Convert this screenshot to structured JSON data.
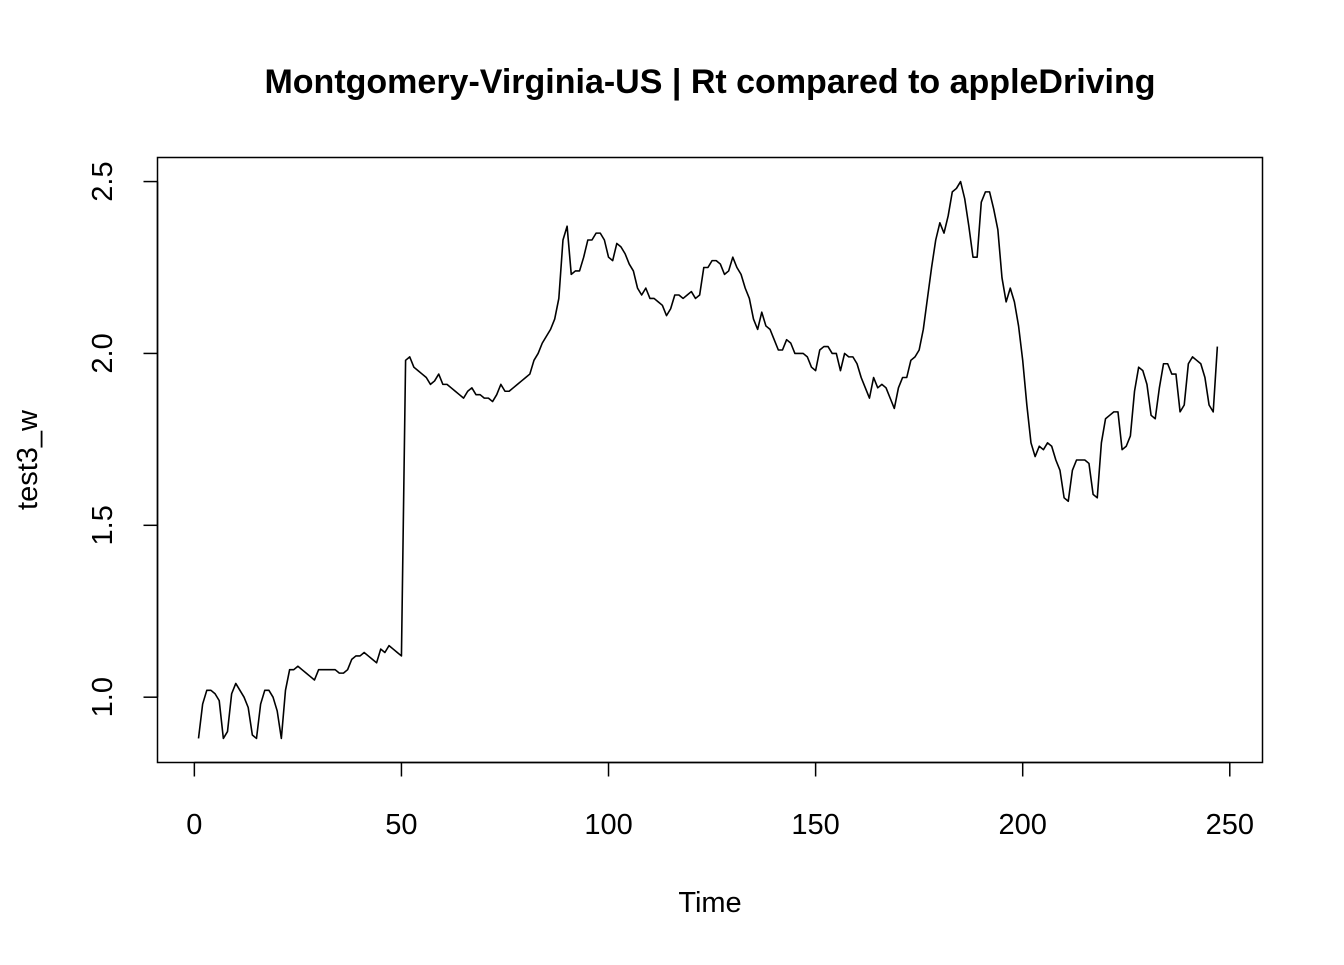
{
  "colors": {
    "background": "#ffffff",
    "line": "#000000",
    "axis": "#000000"
  },
  "chart_data": {
    "type": "line",
    "title": "Montgomery-Virginia-US | Rt compared to appleDriving",
    "xlabel": "Time",
    "ylabel": "test3_w",
    "xlim": [
      -8.9,
      257.9
    ],
    "ylim": [
      0.81,
      2.57
    ],
    "xticks": [
      0,
      50,
      100,
      150,
      200,
      250
    ],
    "xtick_labels": [
      "0",
      "50",
      "100",
      "150",
      "200",
      "250"
    ],
    "yticks": [
      1.0,
      1.5,
      2.0,
      2.5
    ],
    "ytick_labels": [
      "1.0",
      "1.5",
      "2.0",
      "2.5"
    ],
    "grid": false,
    "legend": "none",
    "series": [
      {
        "x_start": 1,
        "x_step": 1,
        "values": [
          0.88,
          0.98,
          1.02,
          1.02,
          1.01,
          0.99,
          0.88,
          0.9,
          1.01,
          1.04,
          1.02,
          1.0,
          0.97,
          0.89,
          0.88,
          0.98,
          1.02,
          1.02,
          1.0,
          0.96,
          0.88,
          1.02,
          1.08,
          1.08,
          1.09,
          1.08,
          1.07,
          1.06,
          1.05,
          1.08,
          1.08,
          1.08,
          1.08,
          1.08,
          1.07,
          1.07,
          1.08,
          1.11,
          1.12,
          1.12,
          1.13,
          1.12,
          1.11,
          1.1,
          1.14,
          1.13,
          1.15,
          1.14,
          1.13,
          1.12,
          1.98,
          1.99,
          1.96,
          1.95,
          1.94,
          1.93,
          1.91,
          1.92,
          1.94,
          1.91,
          1.91,
          1.9,
          1.89,
          1.88,
          1.87,
          1.89,
          1.9,
          1.88,
          1.88,
          1.87,
          1.87,
          1.86,
          1.88,
          1.91,
          1.89,
          1.89,
          1.9,
          1.91,
          1.92,
          1.93,
          1.94,
          1.98,
          2.0,
          2.03,
          2.05,
          2.07,
          2.1,
          2.16,
          2.33,
          2.37,
          2.23,
          2.24,
          2.24,
          2.28,
          2.33,
          2.33,
          2.35,
          2.35,
          2.33,
          2.28,
          2.27,
          2.32,
          2.31,
          2.29,
          2.26,
          2.24,
          2.19,
          2.17,
          2.19,
          2.16,
          2.16,
          2.15,
          2.14,
          2.11,
          2.13,
          2.17,
          2.17,
          2.16,
          2.17,
          2.18,
          2.16,
          2.17,
          2.25,
          2.25,
          2.27,
          2.27,
          2.26,
          2.23,
          2.24,
          2.28,
          2.25,
          2.23,
          2.19,
          2.16,
          2.1,
          2.07,
          2.12,
          2.08,
          2.07,
          2.04,
          2.01,
          2.01,
          2.04,
          2.03,
          2.0,
          2.0,
          2.0,
          1.99,
          1.96,
          1.95,
          2.01,
          2.02,
          2.02,
          2.0,
          2.0,
          1.95,
          2.0,
          1.99,
          1.99,
          1.97,
          1.93,
          1.9,
          1.87,
          1.93,
          1.9,
          1.91,
          1.9,
          1.87,
          1.84,
          1.9,
          1.93,
          1.93,
          1.98,
          1.99,
          2.01,
          2.07,
          2.16,
          2.25,
          2.33,
          2.38,
          2.35,
          2.4,
          2.47,
          2.48,
          2.5,
          2.45,
          2.37,
          2.28,
          2.28,
          2.44,
          2.47,
          2.47,
          2.42,
          2.36,
          2.22,
          2.15,
          2.19,
          2.15,
          2.08,
          1.98,
          1.85,
          1.74,
          1.7,
          1.73,
          1.72,
          1.74,
          1.73,
          1.69,
          1.66,
          1.58,
          1.57,
          1.66,
          1.69,
          1.69,
          1.69,
          1.68,
          1.59,
          1.58,
          1.74,
          1.81,
          1.82,
          1.83,
          1.83,
          1.72,
          1.73,
          1.76,
          1.89,
          1.96,
          1.95,
          1.91,
          1.82,
          1.81,
          1.9,
          1.97,
          1.97,
          1.94,
          1.94,
          1.83,
          1.85,
          1.97,
          1.99,
          1.98,
          1.97,
          1.93,
          1.85,
          1.83,
          2.02
        ]
      }
    ]
  }
}
